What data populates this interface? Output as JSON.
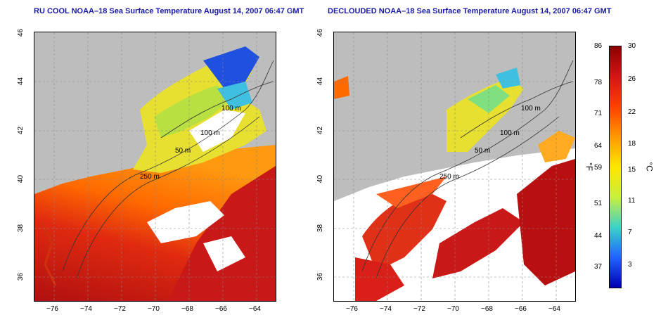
{
  "titles": {
    "left": "RU COOL NOAA–18 Sea Surface Temperature August 14, 2007 06:47 GMT",
    "right": "DECLOUDED NOAA–18 Sea Surface Temperature August 14, 2007 06:47 GMT"
  },
  "axes": {
    "lon_ticks": [
      "−76",
      "−74",
      "−72",
      "−70",
      "−68",
      "−66",
      "−64"
    ],
    "lat_ticks": [
      "46",
      "44",
      "42",
      "40",
      "38",
      "36"
    ]
  },
  "contours": {
    "label_100": "100 m",
    "label_50": "50 m",
    "label_250": "250 m"
  },
  "colorbar": {
    "fahrenheit_ticks": [
      "86",
      "78",
      "71",
      "64",
      "59",
      "51",
      "44",
      "37"
    ],
    "celsius_ticks": [
      "30",
      "26",
      "22",
      "18",
      "15",
      "11",
      "7",
      "3"
    ],
    "unit_f": "°F",
    "unit_c": "°C",
    "colors": [
      "#8b0000",
      "#d41515",
      "#ff4000",
      "#ff9900",
      "#ffe600",
      "#c8f03c",
      "#3cd2c8",
      "#1e64ff",
      "#0000b4"
    ]
  }
}
